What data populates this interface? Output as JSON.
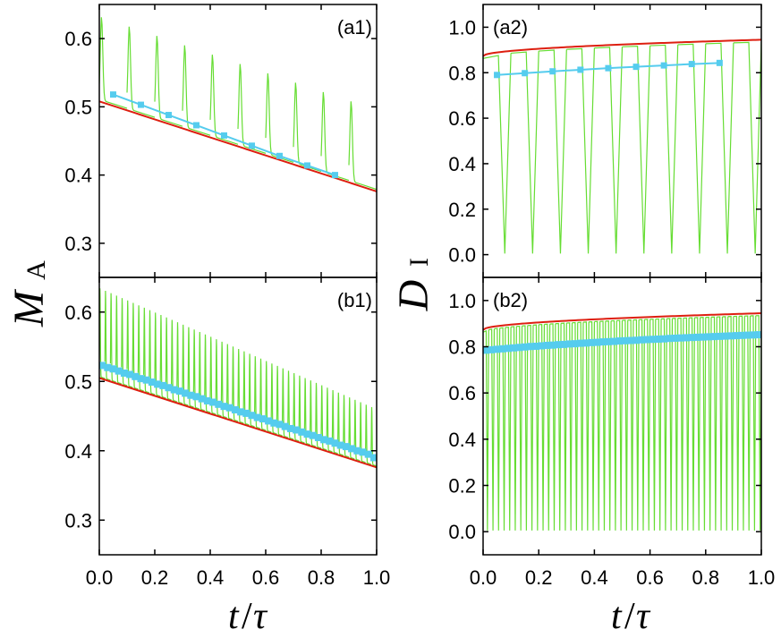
{
  "colors": {
    "bound": "#dd1f10",
    "average": "#55ccee",
    "trajectory": "#66dd33",
    "axis": "#000000"
  },
  "axis_titles": {
    "left_y_main": "M",
    "left_y_sub": "A",
    "right_y_main": "D",
    "right_y_sub": "I",
    "x_main": "t",
    "x_slash": "/",
    "x_tau": "τ"
  },
  "x_ticks": [
    "0.0",
    "0.2",
    "0.4",
    "0.6",
    "0.8",
    "1.0"
  ],
  "chart_data": [
    {
      "id": "a1",
      "type": "line",
      "panel_label": "(a1)",
      "xlim": [
        0,
        1
      ],
      "ylim": [
        0.25,
        0.65
      ],
      "y_ticks": [
        "0.3",
        "0.4",
        "0.5",
        "0.6"
      ],
      "y_tick_values": [
        0.3,
        0.4,
        0.5,
        0.6
      ],
      "show_x_ticks": false,
      "bound": {
        "start": 0.508,
        "end": 0.376,
        "shape": "linear"
      },
      "average": {
        "x": [
          0.05,
          0.15,
          0.25,
          0.35,
          0.45,
          0.55,
          0.65,
          0.75,
          0.85
        ],
        "y": [
          0.518,
          0.503,
          0.488,
          0.473,
          0.458,
          0.443,
          0.428,
          0.414,
          0.4
        ]
      },
      "trajectory": {
        "period": 0.1,
        "peak_start": 0.632,
        "peak_end": 0.495,
        "base_offset": 0.003,
        "peak_width": 0.04,
        "mode": "pulse_up"
      }
    },
    {
      "id": "a2",
      "type": "line",
      "panel_label": "(a2)",
      "xlim": [
        0,
        1
      ],
      "ylim": [
        -0.1,
        1.1
      ],
      "y_ticks": [
        "0.0",
        "0.2",
        "0.4",
        "0.6",
        "0.8",
        "1.0"
      ],
      "y_tick_values": [
        0.0,
        0.2,
        0.4,
        0.6,
        0.8,
        1.0
      ],
      "show_x_ticks": false,
      "bound": {
        "start": 0.873,
        "end": 0.945,
        "shape": "concave"
      },
      "average": {
        "x": [
          0.05,
          0.15,
          0.25,
          0.35,
          0.45,
          0.55,
          0.65,
          0.75,
          0.85
        ],
        "y": [
          0.79,
          0.798,
          0.806,
          0.813,
          0.82,
          0.826,
          0.832,
          0.838,
          0.843
        ]
      },
      "trajectory": {
        "period": 0.1,
        "low": 0.005,
        "mode": "dip_down"
      }
    },
    {
      "id": "b1",
      "type": "line",
      "panel_label": "(b1)",
      "xlim": [
        0,
        1
      ],
      "ylim": [
        0.25,
        0.65
      ],
      "y_ticks": [
        "0.3",
        "0.4",
        "0.5",
        "0.6"
      ],
      "y_tick_values": [
        0.3,
        0.4,
        0.5,
        0.6
      ],
      "show_x_ticks": true,
      "bound": {
        "start": 0.505,
        "end": 0.376,
        "shape": "linear"
      },
      "average": {
        "x": [
          0.01,
          0.03,
          0.05,
          0.07,
          0.09,
          0.11,
          0.13,
          0.15,
          0.17,
          0.19,
          0.21,
          0.23,
          0.25,
          0.27,
          0.29,
          0.31,
          0.33,
          0.35,
          0.37,
          0.39,
          0.41,
          0.43,
          0.45,
          0.47,
          0.49,
          0.51,
          0.53,
          0.55,
          0.57,
          0.59,
          0.61,
          0.63,
          0.65,
          0.67,
          0.69,
          0.71,
          0.73,
          0.75,
          0.77,
          0.79,
          0.81,
          0.83,
          0.85,
          0.87,
          0.89,
          0.91,
          0.93,
          0.95,
          0.97,
          0.99
        ],
        "y": [
          0.523,
          0.52,
          0.518,
          0.515,
          0.512,
          0.51,
          0.507,
          0.504,
          0.502,
          0.499,
          0.496,
          0.494,
          0.491,
          0.488,
          0.486,
          0.483,
          0.48,
          0.478,
          0.475,
          0.472,
          0.47,
          0.467,
          0.464,
          0.462,
          0.459,
          0.456,
          0.454,
          0.451,
          0.448,
          0.446,
          0.443,
          0.44,
          0.438,
          0.435,
          0.432,
          0.43,
          0.427,
          0.424,
          0.422,
          0.419,
          0.416,
          0.414,
          0.411,
          0.408,
          0.406,
          0.403,
          0.4,
          0.398,
          0.395,
          0.39
        ]
      },
      "trajectory": {
        "period": 0.02,
        "peak_start": 0.635,
        "peak_end": 0.46,
        "base_offset": 0.002,
        "peak_width": 0.012,
        "mode": "pulse_up"
      }
    },
    {
      "id": "b2",
      "type": "line",
      "panel_label": "(b2)",
      "xlim": [
        0,
        1
      ],
      "ylim": [
        -0.1,
        1.1
      ],
      "y_ticks": [
        "0.0",
        "0.2",
        "0.4",
        "0.6",
        "0.8",
        "1.0"
      ],
      "y_tick_values": [
        0.0,
        0.2,
        0.4,
        0.6,
        0.8,
        1.0
      ],
      "show_x_ticks": true,
      "bound": {
        "start": 0.873,
        "end": 0.945,
        "shape": "concave"
      },
      "average": {
        "x": [
          0.01,
          0.03,
          0.05,
          0.07,
          0.09,
          0.11,
          0.13,
          0.15,
          0.17,
          0.19,
          0.21,
          0.23,
          0.25,
          0.27,
          0.29,
          0.31,
          0.33,
          0.35,
          0.37,
          0.39,
          0.41,
          0.43,
          0.45,
          0.47,
          0.49,
          0.51,
          0.53,
          0.55,
          0.57,
          0.59,
          0.61,
          0.63,
          0.65,
          0.67,
          0.69,
          0.71,
          0.73,
          0.75,
          0.77,
          0.79,
          0.81,
          0.83,
          0.85,
          0.87,
          0.89,
          0.91,
          0.93,
          0.95,
          0.97,
          0.99
        ],
        "y": [
          0.785,
          0.787,
          0.789,
          0.791,
          0.793,
          0.795,
          0.797,
          0.799,
          0.801,
          0.802,
          0.804,
          0.806,
          0.807,
          0.809,
          0.81,
          0.812,
          0.813,
          0.815,
          0.816,
          0.818,
          0.819,
          0.821,
          0.822,
          0.823,
          0.825,
          0.826,
          0.827,
          0.828,
          0.83,
          0.831,
          0.832,
          0.833,
          0.834,
          0.836,
          0.837,
          0.838,
          0.839,
          0.84,
          0.841,
          0.842,
          0.843,
          0.844,
          0.845,
          0.846,
          0.847,
          0.848,
          0.849,
          0.85,
          0.851,
          0.852
        ]
      },
      "trajectory": {
        "period": 0.02,
        "low": 0.005,
        "mode": "dip_down"
      }
    }
  ]
}
